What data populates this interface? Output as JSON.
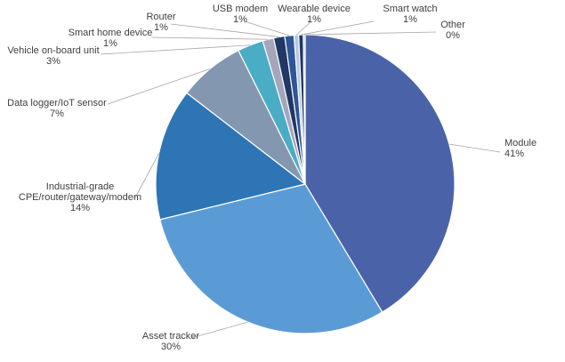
{
  "chart_data": {
    "type": "pie",
    "title": "",
    "slices": [
      {
        "name": "Module",
        "percent_label": "41%",
        "value": 41.5,
        "color": "#4A63A8"
      },
      {
        "name": "Asset tracker",
        "percent_label": "30%",
        "value": 29.9,
        "color": "#5B9BD5"
      },
      {
        "name": "Industrial-grade CPE/router/gateway/modem",
        "percent_label": "14%",
        "value": 14.3,
        "color": "#2E75B6"
      },
      {
        "name": "Data logger/IoT sensor",
        "percent_label": "7%",
        "value": 7.2,
        "color": "#8497B0"
      },
      {
        "name": "Vehicle on-board unit",
        "percent_label": "3%",
        "value": 2.8,
        "color": "#4BACC6"
      },
      {
        "name": "Smart home device",
        "percent_label": "1%",
        "value": 1.2,
        "color": "#A5A5BC"
      },
      {
        "name": "Router",
        "percent_label": "1%",
        "value": 1.2,
        "color": "#203864"
      },
      {
        "name": "USB modem",
        "percent_label": "1%",
        "value": 1.0,
        "color": "#2F5597"
      },
      {
        "name": "Wearable device",
        "percent_label": "1%",
        "value": 0.5,
        "color": "#B4C7E7"
      },
      {
        "name": "Smart watch",
        "percent_label": "1%",
        "value": 0.5,
        "color": "#1F3864"
      },
      {
        "name": "Other",
        "percent_label": "0%",
        "value": 0.2,
        "color": "#A9C4EB"
      }
    ],
    "label_lines": [
      [
        "Module",
        "41%"
      ],
      [
        "Asset tracker",
        "30%"
      ],
      [
        "Industrial-grade",
        "CPE/router/gateway/modem",
        "14%"
      ],
      [
        "Data logger/IoT sensor",
        "7%"
      ],
      [
        "Vehicle on-board unit",
        "3%"
      ],
      [
        "Smart home device",
        "1%"
      ],
      [
        "Router",
        "1%"
      ],
      [
        "USB modem",
        "1%"
      ],
      [
        "Wearable device",
        "1%"
      ],
      [
        "Smart watch",
        "1%"
      ],
      [
        "Other",
        "0%"
      ]
    ]
  }
}
